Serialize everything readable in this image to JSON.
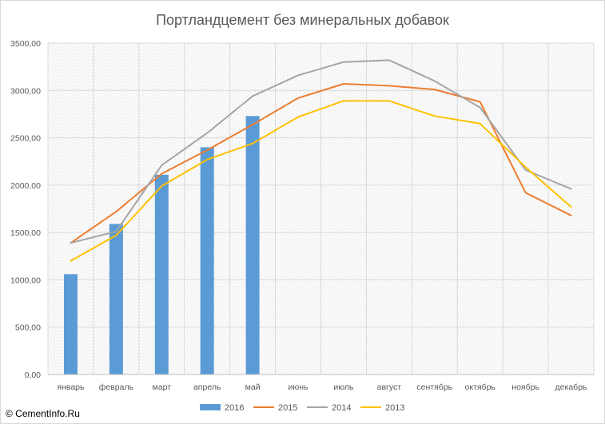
{
  "chart_data": {
    "type": "bar+line",
    "title": "Портландцемент без минеральных добавок",
    "xlabel": "",
    "ylabel": "",
    "categories": [
      "январь",
      "февраль",
      "март",
      "апрель",
      "май",
      "июнь",
      "июль",
      "август",
      "сентябрь",
      "октябрь",
      "ноябрь",
      "декабрь"
    ],
    "ylim": [
      0,
      3500
    ],
    "yticks": [
      "0,00",
      "500,00",
      "1000,00",
      "1500,00",
      "2000,00",
      "2500,00",
      "3000,00",
      "3500,00"
    ],
    "grid": true,
    "legend_position": "bottom",
    "series": [
      {
        "name": "2016",
        "kind": "bar",
        "color": "#5b9bd5",
        "values": [
          1060,
          1590,
          2110,
          2400,
          2730,
          null,
          null,
          null,
          null,
          null,
          null,
          null
        ]
      },
      {
        "name": "2015",
        "kind": "line",
        "color": "#ed7d31",
        "values": [
          1390,
          1720,
          2120,
          2370,
          2640,
          2920,
          3070,
          3050,
          3010,
          2880,
          1920,
          1680
        ]
      },
      {
        "name": "2014",
        "kind": "line",
        "color": "#a5a5a5",
        "values": [
          1390,
          1510,
          2210,
          2550,
          2940,
          3160,
          3300,
          3320,
          3100,
          2820,
          2160,
          1960
        ]
      },
      {
        "name": "2013",
        "kind": "line",
        "color": "#ffc000",
        "values": [
          1200,
          1470,
          1990,
          2270,
          2440,
          2720,
          2890,
          2890,
          2730,
          2650,
          2190,
          1770
        ]
      }
    ]
  },
  "watermark": "© CementInfo.Ru"
}
